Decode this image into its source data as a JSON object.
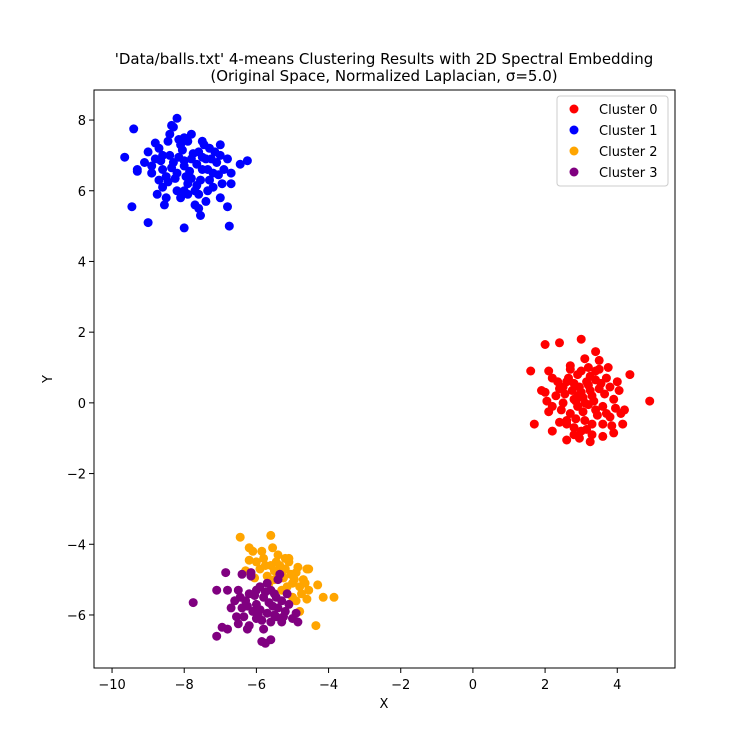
{
  "chart_data": {
    "type": "scatter",
    "title": "'Data/balls.txt' 4-means Clustering Results with 2D Spectral Embedding",
    "subtitle": "(Original Space, Normalized Laplacian, σ=5.0)",
    "xlabel": "X",
    "ylabel": "Y",
    "xlim": [
      -10.5,
      5.6
    ],
    "ylim": [
      -7.5,
      8.85
    ],
    "xticks": [
      "−10",
      "−8",
      "−6",
      "−4",
      "−2",
      "0",
      "2",
      "4"
    ],
    "yticks": [
      "−6",
      "−4",
      "−2",
      "0",
      "2",
      "4",
      "6",
      "8"
    ],
    "grid": false,
    "legend_position": "top-right",
    "series": [
      {
        "name": "Cluster 0",
        "color": "#ff0000",
        "points": [
          [
            3.0,
            0.3
          ],
          [
            2.8,
            0.1
          ],
          [
            3.2,
            0.5
          ],
          [
            3.4,
            -0.2
          ],
          [
            2.6,
            0.6
          ],
          [
            3.1,
            -0.5
          ],
          [
            2.9,
            0.8
          ],
          [
            3.3,
            0.2
          ],
          [
            2.7,
            -0.3
          ],
          [
            3.5,
            0.4
          ],
          [
            3.6,
            -0.1
          ],
          [
            2.5,
            0.0
          ],
          [
            3.0,
            -0.8
          ],
          [
            3.2,
            1.0
          ],
          [
            2.4,
            0.4
          ],
          [
            3.7,
            0.7
          ],
          [
            2.8,
            -0.7
          ],
          [
            3.4,
            0.9
          ],
          [
            3.1,
            0.0
          ],
          [
            2.9,
            -0.1
          ],
          [
            3.3,
            -0.6
          ],
          [
            2.6,
            -0.5
          ],
          [
            3.8,
            -0.4
          ],
          [
            2.3,
            0.2
          ],
          [
            3.5,
            1.2
          ],
          [
            2.2,
            -0.1
          ],
          [
            3.9,
            0.1
          ],
          [
            4.1,
            -0.3
          ],
          [
            2.0,
            0.3
          ],
          [
            4.0,
            0.6
          ],
          [
            3.0,
            1.8
          ],
          [
            3.4,
            1.45
          ],
          [
            2.4,
            1.7
          ],
          [
            2.0,
            1.65
          ],
          [
            1.6,
            0.9
          ],
          [
            2.1,
            0.9
          ],
          [
            1.7,
            -0.6
          ],
          [
            2.2,
            -0.8
          ],
          [
            2.6,
            -1.05
          ],
          [
            3.25,
            -1.1
          ],
          [
            3.6,
            -0.95
          ],
          [
            3.9,
            -0.85
          ],
          [
            4.35,
            0.8
          ],
          [
            4.9,
            0.05
          ],
          [
            4.15,
            -0.6
          ],
          [
            4.2,
            -0.2
          ],
          [
            2.1,
            -0.25
          ],
          [
            2.8,
            -0.9
          ],
          [
            3.7,
            -0.3
          ],
          [
            2.7,
            0.95
          ],
          [
            3.15,
            0.6
          ],
          [
            2.55,
            0.25
          ],
          [
            3.45,
            -0.35
          ],
          [
            2.95,
            0.45
          ],
          [
            3.25,
            0.75
          ],
          [
            3.05,
            -0.25
          ],
          [
            2.75,
            0.35
          ],
          [
            3.35,
            0.05
          ],
          [
            2.85,
            -0.45
          ],
          [
            3.55,
            0.55
          ],
          [
            2.45,
            -0.2
          ],
          [
            3.65,
            0.25
          ],
          [
            2.65,
            0.7
          ],
          [
            3.15,
            -0.75
          ],
          [
            3.8,
            0.45
          ],
          [
            2.35,
            0.6
          ],
          [
            3.0,
            0.9
          ],
          [
            2.9,
            0.2
          ],
          [
            3.2,
            -0.05
          ],
          [
            2.6,
            -0.6
          ],
          [
            3.4,
            0.65
          ],
          [
            2.5,
            0.45
          ],
          [
            3.05,
            0.15
          ],
          [
            3.6,
            -0.6
          ],
          [
            2.8,
            0.55
          ],
          [
            3.3,
            -0.9
          ],
          [
            3.95,
            -0.15
          ],
          [
            2.2,
            0.7
          ],
          [
            1.9,
            0.35
          ],
          [
            3.75,
            1.0
          ],
          [
            2.95,
            -1.0
          ],
          [
            3.1,
            1.25
          ],
          [
            2.7,
            1.05
          ],
          [
            3.5,
            0.95
          ],
          [
            2.4,
            -0.55
          ],
          [
            4.05,
            0.35
          ],
          [
            3.85,
            -0.65
          ],
          [
            2.05,
            0.05
          ],
          [
            3.25,
            0.35
          ],
          [
            2.85,
            0.05
          ]
        ]
      },
      {
        "name": "Cluster 1",
        "color": "#0000ff",
        "points": [
          [
            -8.0,
            6.7
          ],
          [
            -7.8,
            6.9
          ],
          [
            -8.2,
            6.5
          ],
          [
            -7.6,
            7.1
          ],
          [
            -8.4,
            7.0
          ],
          [
            -7.9,
            6.2
          ],
          [
            -8.1,
            7.3
          ],
          [
            -7.5,
            6.6
          ],
          [
            -8.5,
            6.4
          ],
          [
            -7.7,
            6.0
          ],
          [
            -8.3,
            6.8
          ],
          [
            -7.4,
            6.9
          ],
          [
            -8.6,
            6.6
          ],
          [
            -7.3,
            7.2
          ],
          [
            -8.7,
            7.2
          ],
          [
            -7.2,
            6.5
          ],
          [
            -8.0,
            7.5
          ],
          [
            -7.6,
            5.9
          ],
          [
            -8.8,
            6.9
          ],
          [
            -7.1,
            6.8
          ],
          [
            -8.2,
            6.0
          ],
          [
            -7.9,
            7.4
          ],
          [
            -8.9,
            6.5
          ],
          [
            -7.0,
            7.0
          ],
          [
            -8.4,
            7.6
          ],
          [
            -7.5,
            7.4
          ],
          [
            -8.6,
            6.1
          ],
          [
            -7.3,
            6.3
          ],
          [
            -8.1,
            5.8
          ],
          [
            -7.8,
            7.6
          ],
          [
            -9.0,
            7.1
          ],
          [
            -6.9,
            6.6
          ],
          [
            -8.3,
            7.8
          ],
          [
            -7.2,
            6.1
          ],
          [
            -8.7,
            6.3
          ],
          [
            -7.0,
            7.3
          ],
          [
            -9.1,
            6.8
          ],
          [
            -6.8,
            6.9
          ],
          [
            -8.0,
            6.0
          ],
          [
            -7.4,
            5.7
          ],
          [
            -8.5,
            5.8
          ],
          [
            -7.7,
            5.6
          ],
          [
            -8.2,
            8.05
          ],
          [
            -8.35,
            7.85
          ],
          [
            -9.4,
            7.75
          ],
          [
            -9.65,
            6.95
          ],
          [
            -9.3,
            6.55
          ],
          [
            -9.45,
            5.55
          ],
          [
            -9.0,
            5.1
          ],
          [
            -8.0,
            4.95
          ],
          [
            -6.75,
            5.0
          ],
          [
            -7.55,
            5.3
          ],
          [
            -6.45,
            6.75
          ],
          [
            -6.25,
            6.85
          ],
          [
            -6.7,
            6.2
          ],
          [
            -6.7,
            6.5
          ],
          [
            -7.0,
            5.8
          ],
          [
            -6.8,
            5.55
          ],
          [
            -7.6,
            5.5
          ],
          [
            -8.55,
            5.6
          ],
          [
            -8.75,
            5.9
          ],
          [
            -7.95,
            6.4
          ],
          [
            -7.65,
            6.75
          ],
          [
            -8.15,
            6.95
          ],
          [
            -7.85,
            6.55
          ],
          [
            -8.45,
            6.25
          ],
          [
            -7.35,
            6.6
          ],
          [
            -8.05,
            7.15
          ],
          [
            -7.55,
            6.3
          ],
          [
            -8.25,
            6.35
          ],
          [
            -7.75,
            7.05
          ],
          [
            -8.65,
            6.85
          ],
          [
            -7.25,
            6.9
          ],
          [
            -8.9,
            6.7
          ],
          [
            -7.05,
            6.45
          ],
          [
            -8.35,
            6.65
          ],
          [
            -7.45,
            7.3
          ],
          [
            -7.9,
            5.9
          ],
          [
            -8.15,
            7.45
          ],
          [
            -7.65,
            6.15
          ],
          [
            -8.8,
            7.35
          ],
          [
            -7.15,
            7.1
          ],
          [
            -8.45,
            7.4
          ],
          [
            -7.35,
            6.0
          ],
          [
            -9.3,
            6.6
          ],
          [
            -6.95,
            6.2
          ],
          [
            -8.6,
            7.0
          ],
          [
            -7.8,
            6.35
          ],
          [
            -8.0,
            6.85
          ],
          [
            -7.5,
            6.95
          ]
        ]
      },
      {
        "name": "Cluster 2",
        "color": "#ffa500",
        "points": [
          [
            -5.4,
            -4.9
          ],
          [
            -5.2,
            -4.7
          ],
          [
            -5.0,
            -5.1
          ],
          [
            -5.6,
            -4.6
          ],
          [
            -4.9,
            -4.8
          ],
          [
            -5.3,
            -5.3
          ],
          [
            -5.1,
            -4.5
          ],
          [
            -4.8,
            -5.2
          ],
          [
            -5.5,
            -5.0
          ],
          [
            -5.7,
            -4.9
          ],
          [
            -4.7,
            -5.0
          ],
          [
            -5.0,
            -5.5
          ],
          [
            -5.2,
            -4.4
          ],
          [
            -4.6,
            -4.7
          ],
          [
            -5.8,
            -4.4
          ],
          [
            -5.4,
            -4.3
          ],
          [
            -5.9,
            -4.7
          ],
          [
            -6.0,
            -4.5
          ],
          [
            -6.1,
            -4.2
          ],
          [
            -6.2,
            -4.45
          ],
          [
            -6.45,
            -3.8
          ],
          [
            -5.6,
            -3.75
          ],
          [
            -5.55,
            -4.1
          ],
          [
            -5.85,
            -4.2
          ],
          [
            -6.2,
            -4.1
          ],
          [
            -5.1,
            -4.4
          ],
          [
            -4.55,
            -4.7
          ],
          [
            -4.3,
            -5.15
          ],
          [
            -4.15,
            -5.5
          ],
          [
            -3.85,
            -5.5
          ],
          [
            -4.35,
            -6.3
          ],
          [
            -4.8,
            -5.9
          ],
          [
            -4.6,
            -5.55
          ],
          [
            -4.55,
            -5.3
          ],
          [
            -4.9,
            -5.6
          ],
          [
            -5.15,
            -5.2
          ],
          [
            -4.95,
            -5.0
          ],
          [
            -5.35,
            -4.6
          ],
          [
            -5.65,
            -5.1
          ],
          [
            -5.45,
            -4.5
          ],
          [
            -5.25,
            -4.95
          ],
          [
            -4.85,
            -4.65
          ],
          [
            -5.05,
            -4.85
          ],
          [
            -5.5,
            -4.75
          ],
          [
            -4.75,
            -5.4
          ],
          [
            -5.3,
            -4.8
          ],
          [
            -5.75,
            -4.6
          ],
          [
            -6.3,
            -4.75
          ],
          [
            -6.05,
            -4.95
          ],
          [
            -4.65,
            -5.1
          ]
        ]
      },
      {
        "name": "Cluster 3",
        "color": "#800080",
        "points": [
          [
            -5.8,
            -5.5
          ],
          [
            -5.6,
            -5.3
          ],
          [
            -6.0,
            -5.7
          ],
          [
            -5.4,
            -5.8
          ],
          [
            -6.2,
            -5.4
          ],
          [
            -5.5,
            -6.0
          ],
          [
            -5.7,
            -5.1
          ],
          [
            -5.3,
            -5.6
          ],
          [
            -6.1,
            -5.9
          ],
          [
            -5.9,
            -5.2
          ],
          [
            -6.3,
            -5.6
          ],
          [
            -5.2,
            -5.9
          ],
          [
            -5.6,
            -6.2
          ],
          [
            -6.4,
            -5.8
          ],
          [
            -5.5,
            -5.4
          ],
          [
            -6.0,
            -6.1
          ],
          [
            -5.1,
            -5.7
          ],
          [
            -6.5,
            -5.3
          ],
          [
            -5.4,
            -5.0
          ],
          [
            -6.6,
            -5.6
          ],
          [
            -5.0,
            -6.1
          ],
          [
            -6.2,
            -6.3
          ],
          [
            -5.8,
            -6.4
          ],
          [
            -6.7,
            -5.8
          ],
          [
            -5.3,
            -6.2
          ],
          [
            -6.8,
            -5.3
          ],
          [
            -6.5,
            -6.25
          ],
          [
            -6.95,
            -6.35
          ],
          [
            -7.1,
            -6.6
          ],
          [
            -6.8,
            -6.4
          ],
          [
            -6.25,
            -6.4
          ],
          [
            -5.85,
            -6.75
          ],
          [
            -5.6,
            -6.7
          ],
          [
            -5.75,
            -6.8
          ],
          [
            -7.75,
            -5.65
          ],
          [
            -6.85,
            -4.8
          ],
          [
            -7.1,
            -5.3
          ],
          [
            -6.4,
            -4.85
          ],
          [
            -6.15,
            -4.8
          ],
          [
            -6.15,
            -4.9
          ],
          [
            -5.35,
            -4.85
          ],
          [
            -5.45,
            -6.05
          ],
          [
            -4.85,
            -6.2
          ],
          [
            -4.9,
            -5.95
          ],
          [
            -5.9,
            -5.85
          ],
          [
            -5.65,
            -5.65
          ],
          [
            -6.05,
            -5.45
          ],
          [
            -5.95,
            -6.0
          ],
          [
            -5.55,
            -5.75
          ],
          [
            -6.25,
            -5.75
          ],
          [
            -5.75,
            -5.35
          ],
          [
            -5.45,
            -5.5
          ],
          [
            -5.85,
            -6.15
          ],
          [
            -6.35,
            -6.05
          ],
          [
            -5.25,
            -6.05
          ],
          [
            -6.45,
            -5.5
          ],
          [
            -5.7,
            -5.95
          ],
          [
            -6.0,
            -5.3
          ],
          [
            -5.15,
            -5.4
          ],
          [
            -6.55,
            -6.05
          ]
        ]
      }
    ]
  }
}
